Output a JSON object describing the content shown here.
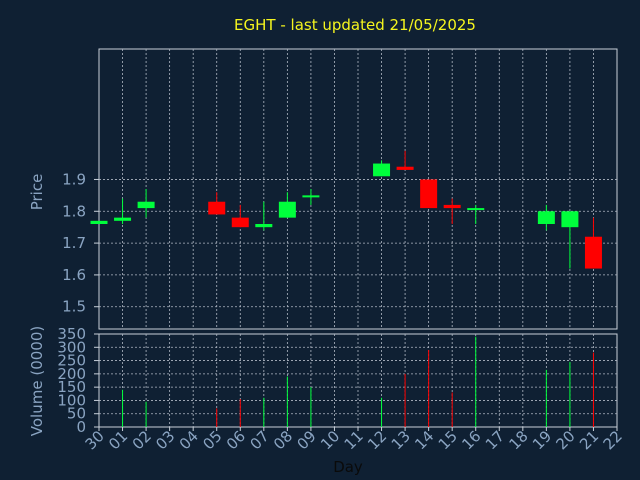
{
  "chart_data": {
    "type": "candlestick",
    "title": "EGHT - last updated 21/05/2025",
    "xlabel": "Day",
    "price_panel": {
      "ylabel": "Price",
      "ylim": [
        1.43,
        2.31
      ],
      "yticks": [
        "1.5",
        "1.6",
        "1.7",
        "1.8",
        "1.9"
      ]
    },
    "volume_panel": {
      "ylabel": "Volume (0000)",
      "ylim": [
        0,
        350
      ],
      "yticks": [
        "0",
        "50",
        "100",
        "150",
        "200",
        "250",
        "300",
        "350"
      ]
    },
    "x_ticks": [
      "30",
      "01",
      "02",
      "03",
      "04",
      "05",
      "06",
      "07",
      "08",
      "09",
      "10",
      "11",
      "12",
      "13",
      "14",
      "15",
      "16",
      "17",
      "18",
      "19",
      "20",
      "21",
      "22"
    ],
    "grid": true,
    "colors": {
      "up": "#00ff3c",
      "down": "#ff0000",
      "background": "#0f2033",
      "grid": "#b0b8c4",
      "title": "#f5f51e",
      "axis_text": "#8aa4c2"
    },
    "series": [
      {
        "x": "30",
        "open": 1.76,
        "high": 1.77,
        "low": 1.76,
        "close": 1.77,
        "volume": 0
      },
      {
        "x": "01",
        "open": 1.77,
        "high": 1.84,
        "low": 1.76,
        "close": 1.78,
        "volume": 140
      },
      {
        "x": "02",
        "open": 1.81,
        "high": 1.87,
        "low": 1.78,
        "close": 1.83,
        "volume": 95
      },
      {
        "x": "05",
        "open": 1.83,
        "high": 1.86,
        "low": 1.79,
        "close": 1.79,
        "volume": 70
      },
      {
        "x": "06",
        "open": 1.78,
        "high": 1.82,
        "low": 1.75,
        "close": 1.75,
        "volume": 105
      },
      {
        "x": "07",
        "open": 1.75,
        "high": 1.83,
        "low": 1.74,
        "close": 1.76,
        "volume": 110
      },
      {
        "x": "08",
        "open": 1.78,
        "high": 1.86,
        "low": 1.78,
        "close": 1.83,
        "volume": 190
      },
      {
        "x": "09",
        "open": 1.85,
        "high": 1.87,
        "low": 1.82,
        "close": 1.85,
        "volume": 150
      },
      {
        "x": "12",
        "open": 1.91,
        "high": 1.96,
        "low": 1.91,
        "close": 1.95,
        "volume": 110
      },
      {
        "x": "13",
        "open": 1.94,
        "high": 1.99,
        "low": 1.93,
        "close": 1.93,
        "volume": 200
      },
      {
        "x": "14",
        "open": 1.9,
        "high": 1.9,
        "low": 1.81,
        "close": 1.81,
        "volume": 290
      },
      {
        "x": "15",
        "open": 1.82,
        "high": 1.84,
        "low": 1.76,
        "close": 1.81,
        "volume": 130
      },
      {
        "x": "16",
        "open": 1.81,
        "high": 1.82,
        "low": 1.76,
        "close": 1.81,
        "volume": 340
      },
      {
        "x": "19",
        "open": 1.76,
        "high": 1.82,
        "low": 1.74,
        "close": 1.8,
        "volume": 215
      },
      {
        "x": "20",
        "open": 1.75,
        "high": 1.8,
        "low": 1.62,
        "close": 1.8,
        "volume": 245
      },
      {
        "x": "21",
        "open": 1.72,
        "high": 1.78,
        "low": 1.62,
        "close": 1.62,
        "volume": 280
      }
    ]
  }
}
